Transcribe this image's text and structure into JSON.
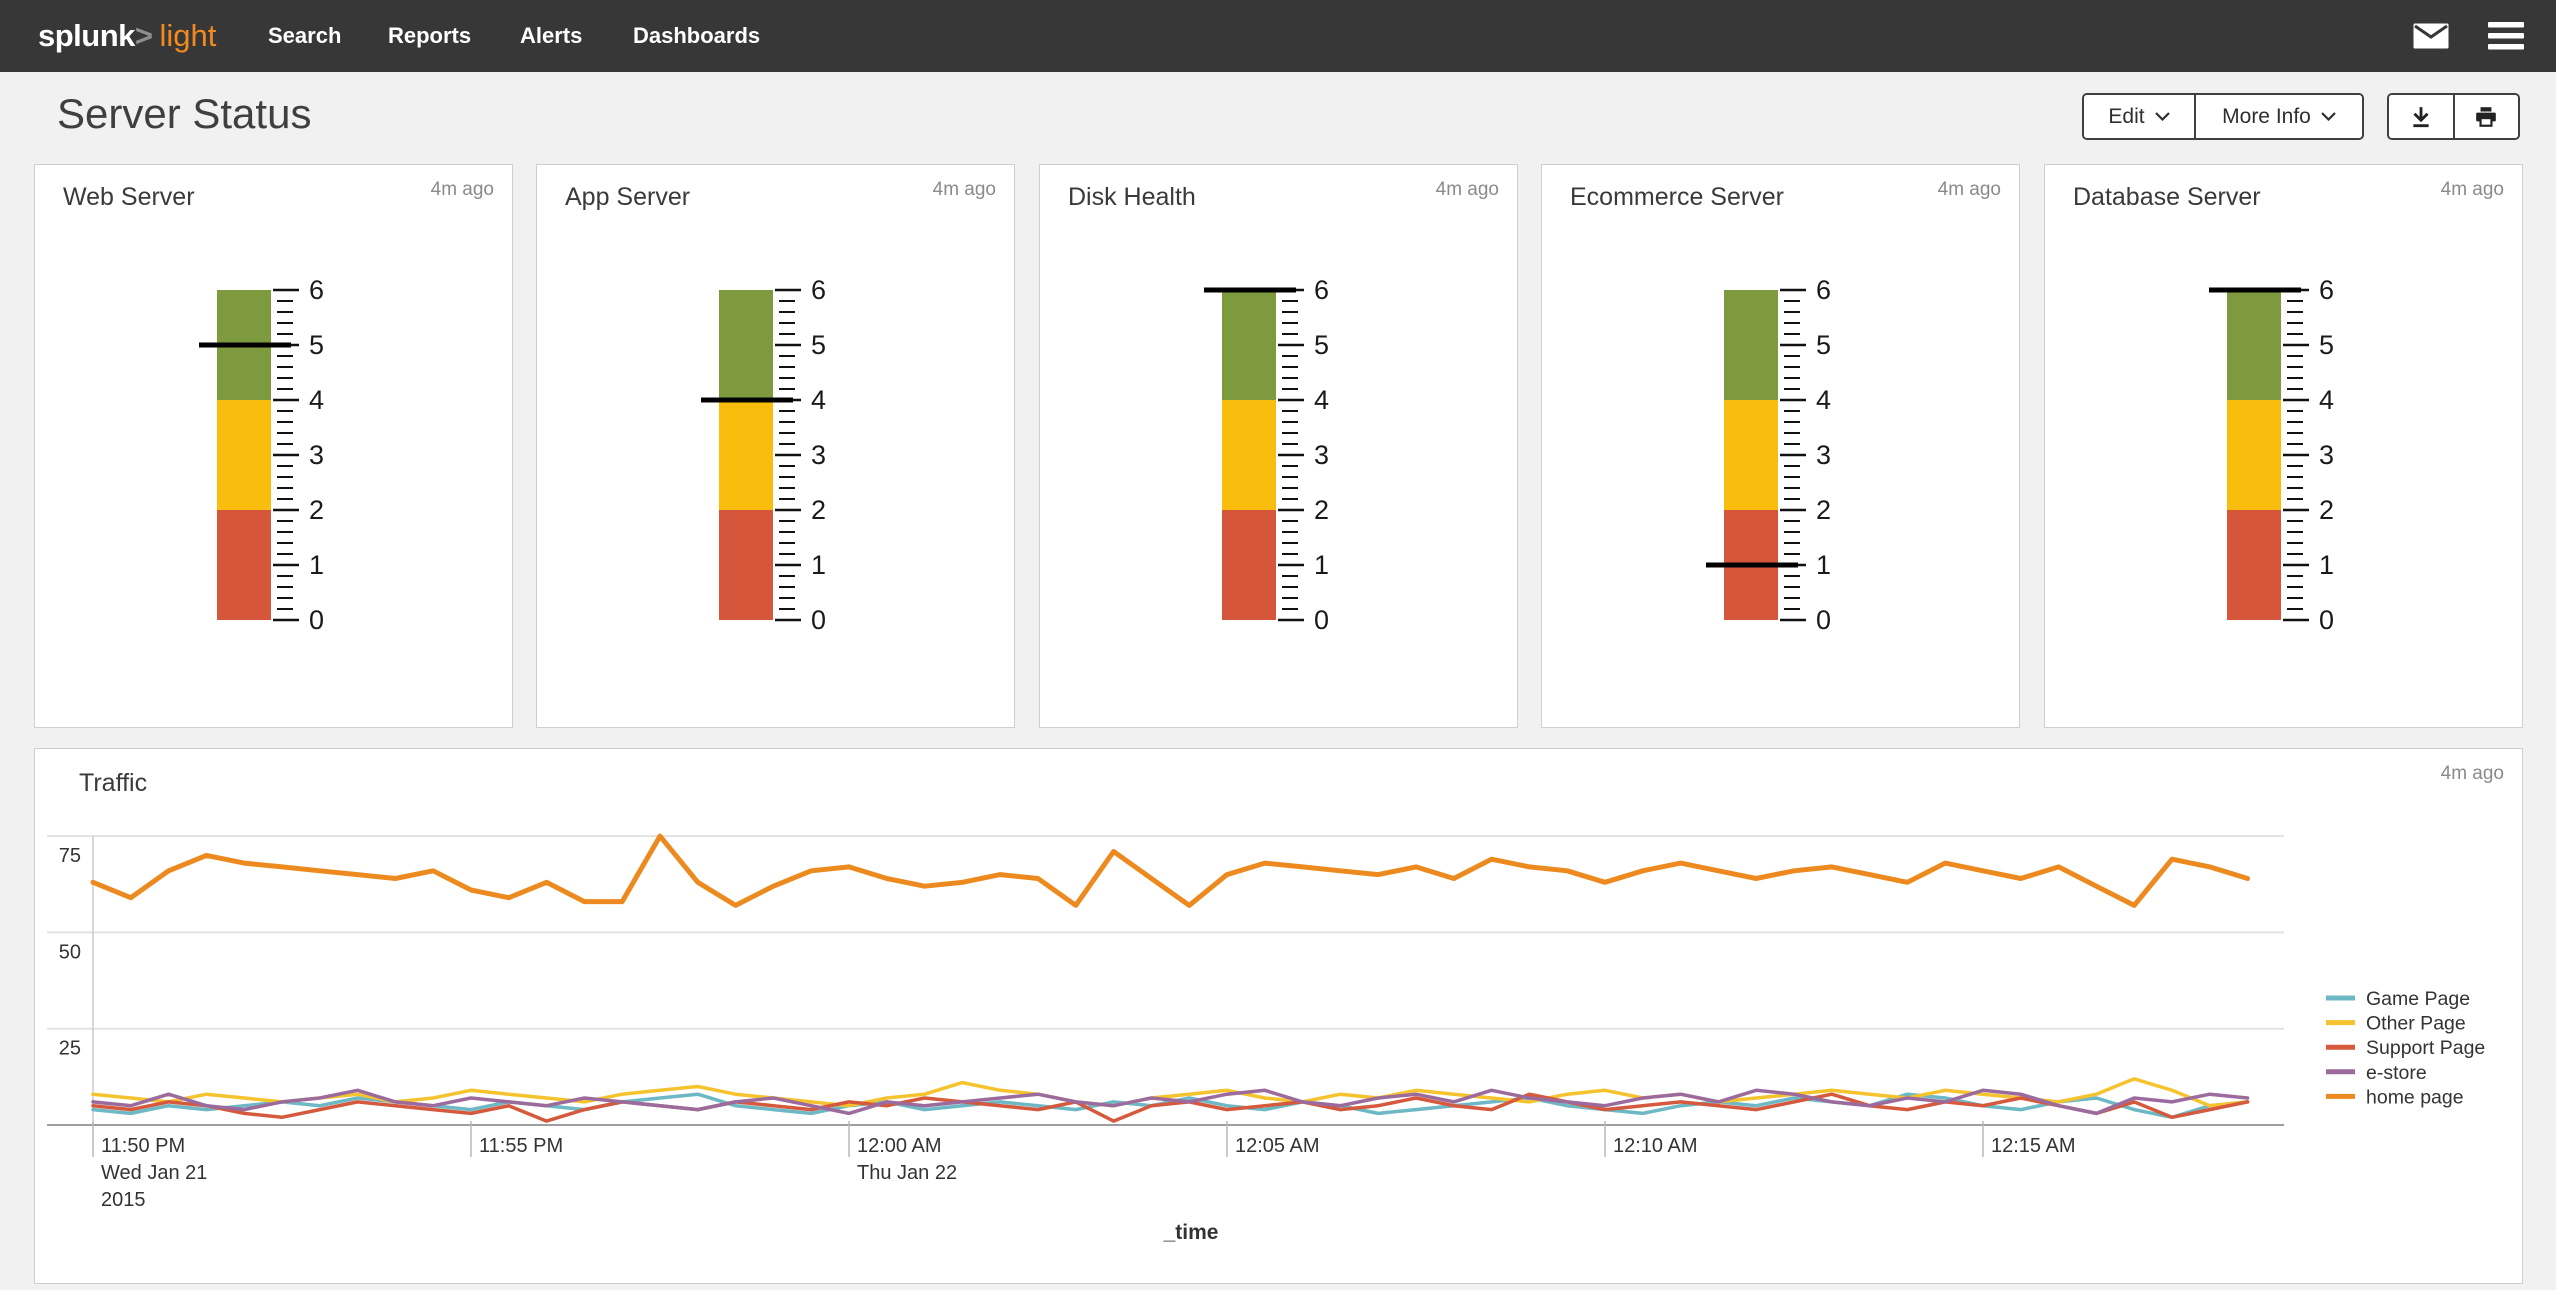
{
  "navbar": {
    "logo_main": "splunk",
    "logo_gt": ">",
    "logo_accent": "light",
    "items": [
      {
        "label": "Search"
      },
      {
        "label": "Reports"
      },
      {
        "label": "Alerts"
      },
      {
        "label": "Dashboards"
      }
    ]
  },
  "header": {
    "title": "Server Status",
    "edit_label": "Edit",
    "more_info_label": "More Info"
  },
  "panels": {
    "updated": [
      "4m ago",
      "4m ago",
      "4m ago",
      "4m ago",
      "4m ago",
      "4m ago"
    ]
  },
  "colors": {
    "navbar_bg": "#373737",
    "accent_orange": "#f28a1f",
    "gauge_green": "#7d9b3e",
    "gauge_yellow": "#f8bd0d",
    "gauge_red": "#d6563c",
    "marker_black": "#000000",
    "gridline": "#e2e2e2",
    "axis": "#9e9e9e"
  },
  "chart_data": [
    {
      "type": "gauge",
      "title": "Web Server",
      "min": 0,
      "max": 6,
      "value": 5,
      "ranges": [
        {
          "from": 0,
          "to": 2,
          "color": "#d6563c"
        },
        {
          "from": 2,
          "to": 4,
          "color": "#f8bd0d"
        },
        {
          "from": 4,
          "to": 6,
          "color": "#7d9b3e"
        }
      ],
      "tick_labels": [
        0,
        1,
        2,
        3,
        4,
        5,
        6
      ],
      "minor_tick": 0.2
    },
    {
      "type": "gauge",
      "title": "App Server",
      "min": 0,
      "max": 6,
      "value": 4,
      "ranges": [
        {
          "from": 0,
          "to": 2,
          "color": "#d6563c"
        },
        {
          "from": 2,
          "to": 4,
          "color": "#f8bd0d"
        },
        {
          "from": 4,
          "to": 6,
          "color": "#7d9b3e"
        }
      ],
      "tick_labels": [
        0,
        1,
        2,
        3,
        4,
        5,
        6
      ],
      "minor_tick": 0.2
    },
    {
      "type": "gauge",
      "title": "Disk Health",
      "min": 0,
      "max": 6,
      "value": 6,
      "ranges": [
        {
          "from": 0,
          "to": 2,
          "color": "#d6563c"
        },
        {
          "from": 2,
          "to": 4,
          "color": "#f8bd0d"
        },
        {
          "from": 4,
          "to": 6,
          "color": "#7d9b3e"
        }
      ],
      "tick_labels": [
        0,
        1,
        2,
        3,
        4,
        5,
        6
      ],
      "minor_tick": 0.2
    },
    {
      "type": "gauge",
      "title": "Ecommerce Server",
      "min": 0,
      "max": 6,
      "value": 1,
      "ranges": [
        {
          "from": 0,
          "to": 2,
          "color": "#d6563c"
        },
        {
          "from": 2,
          "to": 4,
          "color": "#f8bd0d"
        },
        {
          "from": 4,
          "to": 6,
          "color": "#7d9b3e"
        }
      ],
      "tick_labels": [
        0,
        1,
        2,
        3,
        4,
        5,
        6
      ],
      "minor_tick": 0.2
    },
    {
      "type": "gauge",
      "title": "Database Server",
      "min": 0,
      "max": 6,
      "value": 6,
      "ranges": [
        {
          "from": 0,
          "to": 2,
          "color": "#d6563c"
        },
        {
          "from": 2,
          "to": 4,
          "color": "#f8bd0d"
        },
        {
          "from": 4,
          "to": 6,
          "color": "#7d9b3e"
        }
      ],
      "tick_labels": [
        0,
        1,
        2,
        3,
        4,
        5,
        6
      ],
      "minor_tick": 0.2
    },
    {
      "type": "line",
      "title": "Traffic",
      "xlabel": "_time",
      "ylim": [
        0,
        80
      ],
      "yticks": [
        25,
        50,
        75
      ],
      "grid": "horizontal",
      "legend_position": "right",
      "x_start": "11:50 PM",
      "x_interval_seconds": 30,
      "points_per_tick": 10,
      "xticks": [
        {
          "label": "11:50 PM",
          "sub": [
            "Wed Jan 21",
            "2015"
          ]
        },
        {
          "label": "11:55 PM",
          "sub": []
        },
        {
          "label": "12:00 AM",
          "sub": [
            "Thu Jan 22"
          ]
        },
        {
          "label": "12:05 AM",
          "sub": []
        },
        {
          "label": "12:10 AM",
          "sub": []
        },
        {
          "label": "12:15 AM",
          "sub": []
        }
      ],
      "series": [
        {
          "name": "Game Page",
          "color": "#6db8c5",
          "values": [
            4,
            3,
            5,
            4,
            5,
            6,
            5,
            7,
            6,
            5,
            4,
            6,
            5,
            4,
            6,
            7,
            8,
            5,
            4,
            3,
            5,
            6,
            4,
            5,
            6,
            5,
            4,
            6,
            5,
            7,
            5,
            4,
            6,
            5,
            3,
            4,
            5,
            6,
            7,
            5,
            4,
            3,
            5,
            6,
            5,
            7,
            6,
            5,
            8,
            7,
            5,
            4,
            6,
            7,
            4,
            2,
            5,
            6
          ]
        },
        {
          "name": "Other Page",
          "color": "#f5c32d",
          "values": [
            8,
            7,
            6,
            8,
            7,
            6,
            7,
            8,
            6,
            7,
            9,
            8,
            7,
            6,
            8,
            9,
            10,
            8,
            7,
            6,
            5,
            7,
            8,
            11,
            9,
            8,
            6,
            5,
            7,
            8,
            9,
            7,
            6,
            8,
            7,
            9,
            8,
            7,
            6,
            8,
            9,
            7,
            8,
            6,
            7,
            8,
            9,
            8,
            7,
            9,
            8,
            7,
            6,
            8,
            12,
            9,
            5,
            6
          ]
        },
        {
          "name": "Support Page",
          "color": "#d5593c",
          "values": [
            5,
            4,
            6,
            5,
            3,
            2,
            4,
            6,
            5,
            4,
            3,
            5,
            1,
            4,
            6,
            5,
            4,
            6,
            5,
            4,
            6,
            5,
            7,
            6,
            5,
            4,
            6,
            1,
            5,
            6,
            4,
            5,
            6,
            4,
            5,
            7,
            5,
            4,
            8,
            6,
            4,
            5,
            6,
            5,
            4,
            6,
            8,
            5,
            4,
            6,
            5,
            7,
            5,
            3,
            6,
            2,
            4,
            6
          ]
        },
        {
          "name": "e-store",
          "color": "#9c6b9d",
          "values": [
            6,
            5,
            8,
            5,
            4,
            6,
            7,
            9,
            6,
            5,
            7,
            6,
            5,
            7,
            6,
            5,
            4,
            6,
            7,
            5,
            3,
            6,
            5,
            6,
            7,
            8,
            6,
            5,
            7,
            6,
            8,
            9,
            6,
            5,
            7,
            8,
            6,
            9,
            7,
            6,
            5,
            7,
            8,
            6,
            9,
            8,
            6,
            5,
            7,
            6,
            9,
            8,
            5,
            3,
            7,
            6,
            8,
            7
          ]
        },
        {
          "name": "home page",
          "color": "#ed8a1f",
          "values": [
            63,
            59,
            66,
            70,
            68,
            67,
            66,
            65,
            64,
            66,
            61,
            59,
            63,
            58,
            58,
            75,
            63,
            57,
            62,
            66,
            67,
            64,
            62,
            63,
            65,
            64,
            57,
            71,
            64,
            57,
            65,
            68,
            67,
            66,
            65,
            67,
            64,
            69,
            67,
            66,
            63,
            66,
            68,
            66,
            64,
            66,
            67,
            65,
            63,
            68,
            66,
            64,
            67,
            62,
            57,
            69,
            67,
            64
          ]
        }
      ]
    }
  ]
}
